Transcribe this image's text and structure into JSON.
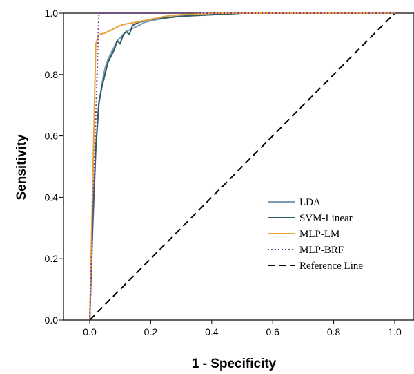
{
  "chart_data": {
    "type": "line",
    "title": "",
    "xlabel": "1 - Specificity",
    "ylabel": "Sensitivity",
    "xlim": [
      0.0,
      1.0
    ],
    "ylim": [
      0.0,
      1.0
    ],
    "xticks": [
      "0.0",
      "0.2",
      "0.4",
      "0.6",
      "0.8",
      "1.0"
    ],
    "yticks": [
      "0.0",
      "0.2",
      "0.4",
      "0.6",
      "0.8",
      "1.0"
    ],
    "grid": false,
    "legend_position": "bottom-right",
    "series": [
      {
        "name": "LDA",
        "color": "#7f9bb2",
        "dash": "solid",
        "x": [
          0.0,
          0.01,
          0.02,
          0.03,
          0.04,
          0.05,
          0.06,
          0.07,
          0.08,
          0.09,
          0.1,
          0.12,
          0.14,
          0.16,
          0.18,
          0.2,
          0.25,
          0.3,
          0.4,
          0.5,
          0.7,
          1.0
        ],
        "y": [
          0.0,
          0.3,
          0.55,
          0.7,
          0.77,
          0.82,
          0.85,
          0.87,
          0.89,
          0.91,
          0.92,
          0.94,
          0.95,
          0.96,
          0.97,
          0.975,
          0.985,
          0.99,
          0.995,
          1.0,
          1.0,
          1.0
        ]
      },
      {
        "name": "SVM-Linear",
        "color": "#2f5f66",
        "dash": "solid",
        "x": [
          0.0,
          0.01,
          0.02,
          0.03,
          0.04,
          0.05,
          0.06,
          0.07,
          0.08,
          0.09,
          0.1,
          0.11,
          0.12,
          0.13,
          0.14,
          0.16,
          0.18,
          0.2,
          0.25,
          0.3,
          0.4,
          0.5,
          0.7,
          1.0
        ],
        "y": [
          0.0,
          0.32,
          0.56,
          0.71,
          0.76,
          0.8,
          0.84,
          0.86,
          0.88,
          0.91,
          0.9,
          0.93,
          0.94,
          0.93,
          0.96,
          0.97,
          0.975,
          0.98,
          0.985,
          0.99,
          0.995,
          1.0,
          1.0,
          1.0
        ]
      },
      {
        "name": "MLP-LM",
        "color": "#e8a33a",
        "dash": "solid",
        "x": [
          0.0,
          0.02,
          0.03,
          0.05,
          0.06,
          0.08,
          0.1,
          0.12,
          0.15,
          0.2,
          0.25,
          0.3,
          0.4,
          0.6,
          1.0
        ],
        "y": [
          0.0,
          0.9,
          0.93,
          0.935,
          0.94,
          0.95,
          0.96,
          0.965,
          0.97,
          0.98,
          0.99,
          0.995,
          1.0,
          1.0,
          1.0
        ]
      },
      {
        "name": "MLP-BRF",
        "color": "#7b3f98",
        "dash": "dotted",
        "x": [
          0.0,
          0.03,
          0.04,
          1.0
        ],
        "y": [
          0.0,
          1.0,
          1.0,
          1.0
        ]
      },
      {
        "name": "Reference Line",
        "color": "#000000",
        "dash": "dashed",
        "x": [
          0.0,
          1.0
        ],
        "y": [
          0.0,
          1.0
        ]
      }
    ]
  }
}
